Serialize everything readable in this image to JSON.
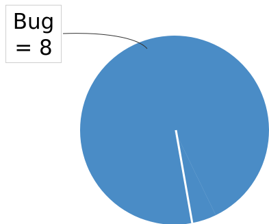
{
  "chart_data": {
    "type": "pie",
    "categories": [
      "Bug",
      ""
    ],
    "values": [
      8,
      0.35
    ],
    "colors": [
      "#4a8cc6",
      "#4a8cc6"
    ],
    "slice_separator_color": "#ffffff",
    "data_labels": [
      {
        "category": "Bug",
        "line1": "Bug",
        "line2": "= 8"
      }
    ],
    "legend": "none",
    "title": ""
  }
}
